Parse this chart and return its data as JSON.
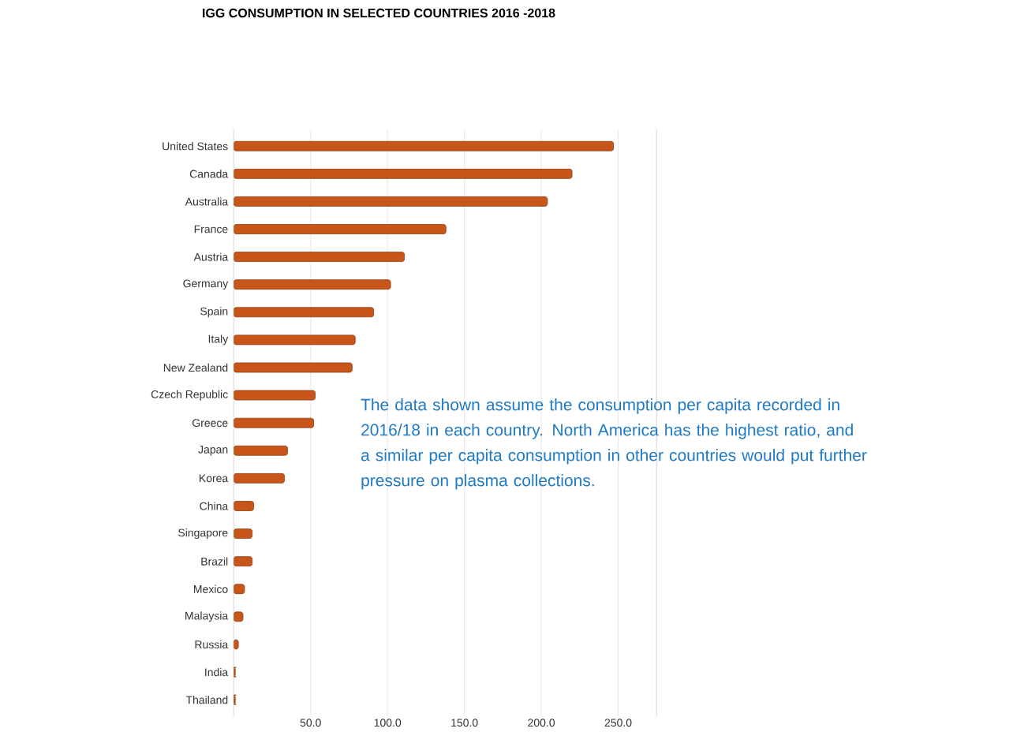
{
  "chart_data": {
    "type": "bar",
    "orientation": "horizontal",
    "title": "IGG CONSUMPTION IN SELECTED COUNTRIES 2016 -2018",
    "categories": [
      "United States",
      "Canada",
      "Australia",
      "France",
      "Austria",
      "Germany",
      "Spain",
      "Italy",
      "New Zealand",
      "Czech Republic",
      "Greece",
      "Japan",
      "Korea",
      "China",
      "Singapore",
      "Brazil",
      "Mexico",
      "Malaysia",
      "Russia",
      "India",
      "Thailand"
    ],
    "values": [
      247,
      220,
      204,
      138,
      111,
      102,
      91,
      79,
      77,
      53,
      52,
      35,
      33,
      13,
      12,
      12,
      7,
      6,
      3,
      1,
      1
    ],
    "color": "#c8561a",
    "xlim": [
      0,
      275
    ],
    "xticks": [
      {
        "value": 50,
        "label": "50.0"
      },
      {
        "value": 100,
        "label": "100.0"
      },
      {
        "value": 150,
        "label": "150.0"
      },
      {
        "value": 200,
        "label": "200.0"
      },
      {
        "value": 250,
        "label": "250.0"
      }
    ],
    "grid": "x",
    "annotations": [
      "The data shown assume the consumption per capita recorded in 2016/18 in each country. North America has the highest ratio, and a similar per capita consumption in other countries would put further pressure on plasma collections."
    ]
  }
}
